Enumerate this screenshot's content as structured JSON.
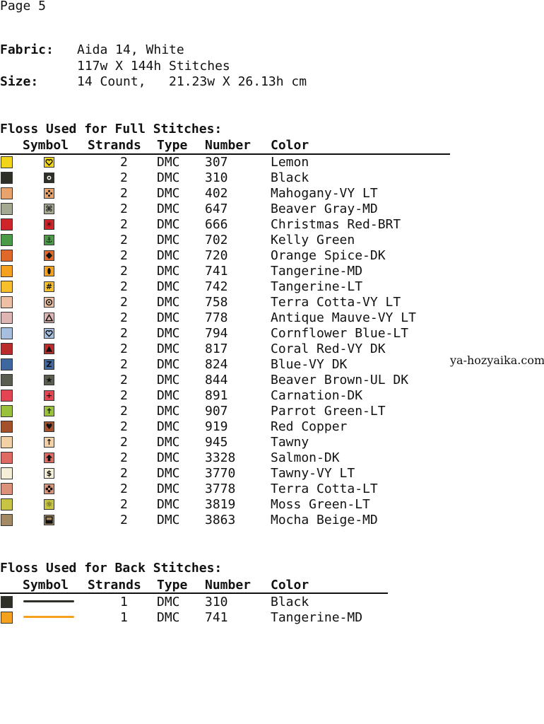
{
  "page_label": "Page 5",
  "fabric": {
    "label": "Fabric:",
    "value": "Aida 14, White",
    "stitches": "117w X 144h Stitches"
  },
  "size": {
    "label": "Size:",
    "value": "14 Count,   21.23w X 26.13h cm"
  },
  "full_section": {
    "title": "Floss Used for Full Stitches:",
    "headers": [
      "Symbol",
      "Strands",
      "Type",
      "Number",
      "Color"
    ],
    "rows": [
      {
        "swatch": "#f2d51a",
        "sym_bg": "#f2d51a",
        "icon": "heart-outline-icon",
        "glyph": "",
        "glyph_color": "#111",
        "strands": "2",
        "type": "DMC",
        "number": "307",
        "color": "Lemon"
      },
      {
        "swatch": "#2e3027",
        "sym_bg": "#2e3027",
        "icon": "small-circle-icon",
        "glyph": "",
        "glyph_color": "#ffffff",
        "strands": "2",
        "type": "DMC",
        "number": "310",
        "color": "Black"
      },
      {
        "swatch": "#e8a36d",
        "sym_bg": "#e8a36d",
        "icon": "four-dots-icon",
        "glyph": "",
        "glyph_color": "#111",
        "strands": "2",
        "type": "DMC",
        "number": "402",
        "color": "Mahogany-VY LT"
      },
      {
        "swatch": "#a4aa92",
        "sym_bg": "#a4aa92",
        "icon": "command-icon",
        "glyph": "⌘",
        "glyph_color": "#111",
        "strands": "2",
        "type": "DMC",
        "number": "647",
        "color": "Beaver Gray-MD"
      },
      {
        "swatch": "#d0242b",
        "sym_bg": "#d0242b",
        "icon": "asterisk-icon",
        "glyph": "✳",
        "glyph_color": "#111",
        "strands": "2",
        "type": "DMC",
        "number": "666",
        "color": "Christmas Red-BRT"
      },
      {
        "swatch": "#4a9a46",
        "sym_bg": "#4a9a46",
        "icon": "anchor-icon",
        "glyph": "⚓",
        "glyph_color": "#111",
        "strands": "2",
        "type": "DMC",
        "number": "702",
        "color": "Kelly Green"
      },
      {
        "swatch": "#e0682a",
        "sym_bg": "#e0682a",
        "icon": "diamond-icon",
        "glyph": "",
        "glyph_color": "#111",
        "strands": "2",
        "type": "DMC",
        "number": "720",
        "color": "Orange Spice-DK"
      },
      {
        "swatch": "#f4a11f",
        "sym_bg": "#f4a11f",
        "icon": "ellipse-icon",
        "glyph": "",
        "glyph_color": "#111",
        "strands": "2",
        "type": "DMC",
        "number": "741",
        "color": "Tangerine-MD"
      },
      {
        "swatch": "#f7bf2c",
        "sym_bg": "#f7bf2c",
        "icon": "hash-icon",
        "glyph": "#",
        "glyph_color": "#111",
        "strands": "2",
        "type": "DMC",
        "number": "742",
        "color": "Tangerine-LT"
      },
      {
        "swatch": "#eec0a3",
        "sym_bg": "#eec0a3",
        "icon": "target-icon",
        "glyph": "",
        "glyph_color": "#111",
        "strands": "2",
        "type": "DMC",
        "number": "758",
        "color": "Terra Cotta-VY LT"
      },
      {
        "swatch": "#dfb5b3",
        "sym_bg": "#dfb5b3",
        "icon": "triangle-outline-icon",
        "glyph": "",
        "glyph_color": "#111",
        "strands": "2",
        "type": "DMC",
        "number": "778",
        "color": "Antique Mauve-VY LT"
      },
      {
        "swatch": "#a6bfdf",
        "sym_bg": "#a6bfdf",
        "icon": "heart-outline-icon",
        "glyph": "",
        "glyph_color": "#111",
        "strands": "2",
        "type": "DMC",
        "number": "794",
        "color": "Cornflower Blue-LT"
      },
      {
        "swatch": "#b92c2b",
        "sym_bg": "#b92c2b",
        "icon": "triangle-filled-icon",
        "glyph": "",
        "glyph_color": "#111",
        "strands": "2",
        "type": "DMC",
        "number": "817",
        "color": "Coral Red-VY DK"
      },
      {
        "swatch": "#3e679f",
        "sym_bg": "#3e679f",
        "icon": "letter-z-icon",
        "glyph": "Z",
        "glyph_color": "#111",
        "strands": "2",
        "type": "DMC",
        "number": "824",
        "color": "Blue-VY DK"
      },
      {
        "swatch": "#595e51",
        "sym_bg": "#595e51",
        "icon": "star-icon",
        "glyph": "★",
        "glyph_color": "#111",
        "strands": "2",
        "type": "DMC",
        "number": "844",
        "color": "Beaver Brown-UL DK"
      },
      {
        "swatch": "#e44552",
        "sym_bg": "#e44552",
        "icon": "plus-icon",
        "glyph": "+",
        "glyph_color": "#111",
        "strands": "2",
        "type": "DMC",
        "number": "891",
        "color": "Carnation-DK"
      },
      {
        "swatch": "#99c23a",
        "sym_bg": "#99c23a",
        "icon": "cross-icon",
        "glyph": "✝",
        "glyph_color": "#111",
        "strands": "2",
        "type": "DMC",
        "number": "907",
        "color": "Parrot Green-LT"
      },
      {
        "swatch": "#a4502a",
        "sym_bg": "#a4502a",
        "icon": "heart-filled-icon",
        "glyph": "♥",
        "glyph_color": "#111",
        "strands": "2",
        "type": "DMC",
        "number": "919",
        "color": "Red Copper"
      },
      {
        "swatch": "#f3d1a6",
        "sym_bg": "#f3d1a6",
        "icon": "arrow-up-icon",
        "glyph": "↑",
        "glyph_color": "#111",
        "strands": "2",
        "type": "DMC",
        "number": "945",
        "color": "Tawny"
      },
      {
        "swatch": "#df6a63",
        "sym_bg": "#df6a63",
        "icon": "arrow-up-filled-icon",
        "glyph": "",
        "glyph_color": "#111",
        "strands": "2",
        "type": "DMC",
        "number": "3328",
        "color": "Salmon-DK"
      },
      {
        "swatch": "#f6efd8",
        "sym_bg": "#f6efd8",
        "icon": "dollar-icon",
        "glyph": "$",
        "glyph_color": "#111",
        "strands": "2",
        "type": "DMC",
        "number": "3770",
        "color": "Tawny-VY LT"
      },
      {
        "swatch": "#dc917a",
        "sym_bg": "#dc917a",
        "icon": "flower-icon",
        "glyph": "",
        "glyph_color": "#111",
        "strands": "2",
        "type": "DMC",
        "number": "3778",
        "color": "Terra Cotta-LT"
      },
      {
        "swatch": "#c7c444",
        "sym_bg": "#c7c444",
        "icon": "sun-icon",
        "glyph": "☼",
        "glyph_color": "#111",
        "strands": "2",
        "type": "DMC",
        "number": "3819",
        "color": "Moss Green-LT"
      },
      {
        "swatch": "#a38a65",
        "sym_bg": "#a38a65",
        "icon": "half-square-icon",
        "glyph": "",
        "glyph_color": "#111",
        "strands": "2",
        "type": "DMC",
        "number": "3863",
        "color": "Mocha Beige-MD"
      }
    ]
  },
  "back_section": {
    "title": "Floss Used for Back Stitches:",
    "headers": [
      "Symbol",
      "Strands",
      "Type",
      "Number",
      "Color"
    ],
    "rows": [
      {
        "swatch": "#2e3027",
        "line_color": "#2e3027",
        "strands": "1",
        "type": "DMC",
        "number": "310",
        "color": "Black"
      },
      {
        "swatch": "#f4a11f",
        "line_color": "#f4a11f",
        "strands": "1",
        "type": "DMC",
        "number": "741",
        "color": "Tangerine-MD"
      }
    ]
  },
  "watermark": "ya-hozyaika.com"
}
